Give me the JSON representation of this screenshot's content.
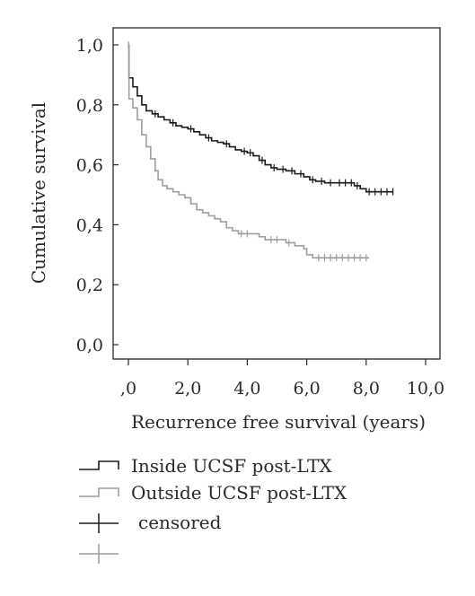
{
  "chart_data": {
    "type": "line",
    "step": true,
    "xlabel": "Recurrence free survival (years)",
    "ylabel": "Cumulative survival",
    "xlim": [
      0,
      10
    ],
    "ylim": [
      0,
      1
    ],
    "x_ticks": [
      0,
      2,
      4,
      6,
      8,
      10
    ],
    "x_tick_labels": [
      ",0",
      "2,0",
      "4,0",
      "6,0",
      "8,0",
      "10,0"
    ],
    "y_ticks": [
      0,
      0.2,
      0.4,
      0.6,
      0.8,
      1.0
    ],
    "y_tick_labels": [
      "0,0",
      "0,2",
      "0,4",
      "0,6",
      "0,8",
      "1,0"
    ],
    "grid": false,
    "legend_position": "bottom",
    "series": [
      {
        "name": "Inside UCSF post-LTX",
        "color": "#1a1a1a",
        "points": [
          [
            0,
            1.0
          ],
          [
            0.02,
            0.89
          ],
          [
            0.15,
            0.86
          ],
          [
            0.3,
            0.83
          ],
          [
            0.45,
            0.8
          ],
          [
            0.6,
            0.78
          ],
          [
            0.8,
            0.77
          ],
          [
            1.0,
            0.76
          ],
          [
            1.2,
            0.75
          ],
          [
            1.4,
            0.74
          ],
          [
            1.6,
            0.73
          ],
          [
            1.8,
            0.725
          ],
          [
            2.0,
            0.72
          ],
          [
            2.2,
            0.71
          ],
          [
            2.4,
            0.7
          ],
          [
            2.6,
            0.69
          ],
          [
            2.8,
            0.68
          ],
          [
            3.0,
            0.675
          ],
          [
            3.2,
            0.67
          ],
          [
            3.4,
            0.66
          ],
          [
            3.6,
            0.65
          ],
          [
            3.8,
            0.645
          ],
          [
            4.0,
            0.64
          ],
          [
            4.2,
            0.63
          ],
          [
            4.4,
            0.615
          ],
          [
            4.6,
            0.6
          ],
          [
            4.8,
            0.59
          ],
          [
            5.0,
            0.585
          ],
          [
            5.3,
            0.58
          ],
          [
            5.6,
            0.57
          ],
          [
            5.9,
            0.56
          ],
          [
            6.1,
            0.55
          ],
          [
            6.3,
            0.545
          ],
          [
            6.6,
            0.54
          ],
          [
            7.0,
            0.54
          ],
          [
            7.4,
            0.54
          ],
          [
            7.6,
            0.53
          ],
          [
            7.8,
            0.52
          ],
          [
            8.0,
            0.51
          ],
          [
            8.9,
            0.51
          ]
        ],
        "censored_x": [
          0.9,
          1.5,
          2.1,
          2.7,
          3.3,
          3.9,
          4.1,
          4.5,
          4.9,
          5.2,
          5.5,
          5.8,
          6.2,
          6.5,
          6.8,
          7.1,
          7.3,
          7.5,
          7.7,
          8.1,
          8.3,
          8.5,
          8.7,
          8.9
        ]
      },
      {
        "name": "Outside UCSF post-LTX",
        "color": "#9e9e9e",
        "points": [
          [
            0,
            1.0
          ],
          [
            0.02,
            0.82
          ],
          [
            0.15,
            0.79
          ],
          [
            0.3,
            0.75
          ],
          [
            0.45,
            0.7
          ],
          [
            0.6,
            0.66
          ],
          [
            0.75,
            0.62
          ],
          [
            0.9,
            0.58
          ],
          [
            1.0,
            0.55
          ],
          [
            1.15,
            0.53
          ],
          [
            1.3,
            0.52
          ],
          [
            1.5,
            0.51
          ],
          [
            1.7,
            0.5
          ],
          [
            1.9,
            0.49
          ],
          [
            2.1,
            0.47
          ],
          [
            2.3,
            0.45
          ],
          [
            2.5,
            0.44
          ],
          [
            2.7,
            0.43
          ],
          [
            2.9,
            0.42
          ],
          [
            3.1,
            0.41
          ],
          [
            3.3,
            0.39
          ],
          [
            3.5,
            0.38
          ],
          [
            3.7,
            0.37
          ],
          [
            4.2,
            0.37
          ],
          [
            4.4,
            0.36
          ],
          [
            4.6,
            0.35
          ],
          [
            5.1,
            0.35
          ],
          [
            5.3,
            0.34
          ],
          [
            5.6,
            0.33
          ],
          [
            5.9,
            0.32
          ],
          [
            6.0,
            0.3
          ],
          [
            6.2,
            0.29
          ],
          [
            8.1,
            0.29
          ]
        ],
        "censored_x": [
          0,
          3.8,
          4.0,
          4.8,
          5.0,
          5.4,
          6.4,
          6.6,
          6.8,
          7.0,
          7.2,
          7.4,
          7.6,
          7.8,
          8.0
        ]
      }
    ],
    "legend": {
      "entries": [
        {
          "label": "Inside UCSF post-LTX",
          "symbol": "step",
          "color": "#1a1a1a"
        },
        {
          "label": "Outside UCSF post-LTX",
          "symbol": "step",
          "color": "#9e9e9e"
        },
        {
          "label": "censored",
          "symbol": "cross",
          "color": "#1a1a1a"
        },
        {
          "label": "",
          "symbol": "cross",
          "color": "#9e9e9e"
        }
      ]
    }
  }
}
